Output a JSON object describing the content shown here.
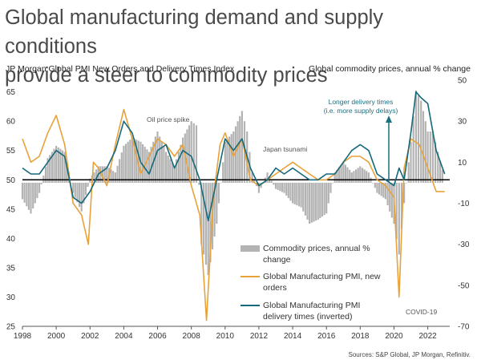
{
  "header": {
    "title_line1": "Global manufacturing demand and supply conditions",
    "title_line2": "provide a steer to commodity prices",
    "left_axis_label": "JP Morgan Global PMI New Orders and Delivery Times Index",
    "right_axis_label": "Global commodity prices, annual % change"
  },
  "footer": {
    "source": "Sources: S&P Global, JP Morgan, Refinitiv."
  },
  "chart_data": {
    "type": "line",
    "x_ticks": [
      "1998",
      "2000",
      "2002",
      "2004",
      "2006",
      "2008",
      "2010",
      "2012",
      "2014",
      "2016",
      "2018",
      "2020",
      "2022"
    ],
    "xlim": [
      1998,
      2023.3
    ],
    "left_axis": {
      "ticks": [
        25,
        30,
        35,
        40,
        45,
        50,
        55,
        60,
        65
      ],
      "ylim": [
        25,
        67
      ]
    },
    "right_axis": {
      "ticks": [
        -70,
        -50,
        -30,
        -10,
        10,
        30,
        50
      ],
      "ylim": [
        -70,
        50
      ]
    },
    "annotations": {
      "oil": "Oil price spike",
      "japan": "Japan tsunami",
      "covid": "COVID-19",
      "delivery_line1": "Longer delivery times",
      "delivery_line2": "(i.e. more supply delays)"
    },
    "legend": {
      "placement": "bottom-right",
      "commodity": [
        "Commodity prices, annual %",
        "change"
      ],
      "neworders": [
        "Global Manufacturing PMI, new",
        "orders"
      ],
      "delivery": [
        "Global Manufacturing PMI",
        "delivery times (inverted)"
      ]
    },
    "colors": {
      "bars": "#b3b3b3",
      "neworders": "#e8a23a",
      "delivery": "#15697a",
      "annotation": "#1b6f7e"
    },
    "series": [
      {
        "name": "Commodity prices, annual % change",
        "axis": "right",
        "style": "bars",
        "x": [
          1998,
          1998.5,
          1999,
          1999.5,
          2000,
          2000.5,
          2001,
          2001.5,
          2002,
          2002.5,
          2003,
          2003.5,
          2004,
          2004.5,
          2005,
          2005.5,
          2006,
          2006.5,
          2007,
          2007.5,
          2008,
          2008.3,
          2008.6,
          2009,
          2009.5,
          2010,
          2010.5,
          2011,
          2011.3,
          2011.6,
          2012,
          2012.5,
          2013,
          2013.5,
          2014,
          2014.5,
          2015,
          2015.5,
          2016,
          2016.5,
          2017,
          2017.5,
          2018,
          2018.5,
          2019,
          2019.5,
          2020,
          2020.3,
          2020.6,
          2021,
          2021.3,
          2021.6,
          2022,
          2022.3,
          2022.6,
          2023
        ],
        "values": [
          -8,
          -15,
          -5,
          12,
          18,
          15,
          -5,
          -14,
          2,
          8,
          8,
          5,
          18,
          22,
          20,
          15,
          25,
          15,
          8,
          22,
          30,
          28,
          -30,
          -45,
          -20,
          20,
          25,
          35,
          25,
          5,
          -5,
          5,
          -3,
          -5,
          -10,
          -12,
          -20,
          -18,
          -15,
          5,
          10,
          5,
          8,
          5,
          -5,
          -8,
          -20,
          -35,
          -10,
          20,
          45,
          40,
          25,
          25,
          15,
          2
        ]
      },
      {
        "name": "Global Manufacturing PMI, new orders",
        "axis": "left",
        "x": [
          1998,
          1998.5,
          1999,
          1999.5,
          2000,
          2000.5,
          2001,
          2001.5,
          2001.9,
          2002.2,
          2002.5,
          2003,
          2003.5,
          2004,
          2004.5,
          2005,
          2005.5,
          2006,
          2006.5,
          2007,
          2007.5,
          2008,
          2008.5,
          2008.9,
          2009.3,
          2009.7,
          2010,
          2010.5,
          2011,
          2011.5,
          2012,
          2012.5,
          2013,
          2013.5,
          2014,
          2014.5,
          2015,
          2015.5,
          2016,
          2016.5,
          2017,
          2017.5,
          2018,
          2018.5,
          2019,
          2019.5,
          2020,
          2020.3,
          2020.6,
          2021,
          2021.5,
          2022,
          2022.5,
          2023
        ],
        "values": [
          57,
          53,
          54,
          58,
          61,
          56,
          46,
          44,
          39,
          53,
          52,
          49,
          56,
          62,
          57,
          51,
          54,
          57,
          56,
          54,
          56,
          49,
          44,
          26,
          47,
          56,
          58,
          54,
          57,
          50,
          49,
          50,
          51,
          52,
          53,
          52,
          51,
          50,
          50,
          51,
          53,
          54,
          54,
          53,
          50,
          49,
          47,
          30,
          52,
          57,
          56,
          52,
          48,
          48
        ]
      },
      {
        "name": "Global Manufacturing PMI delivery times (inverted)",
        "axis": "left",
        "x": [
          1998,
          1998.5,
          1999,
          1999.5,
          2000,
          2000.5,
          2001,
          2001.5,
          2002,
          2002.5,
          2003,
          2003.5,
          2004,
          2004.5,
          2005,
          2005.5,
          2006,
          2006.5,
          2007,
          2007.5,
          2008,
          2008.5,
          2009,
          2009.5,
          2010,
          2010.5,
          2011,
          2011.5,
          2012,
          2012.5,
          2013,
          2013.5,
          2014,
          2014.5,
          2015,
          2015.5,
          2016,
          2016.5,
          2017,
          2017.5,
          2018,
          2018.5,
          2019,
          2019.5,
          2020,
          2020.3,
          2020.6,
          2021,
          2021.3,
          2021.6,
          2022,
          2022.5,
          2023
        ],
        "values": [
          52,
          51,
          51,
          53,
          55,
          54,
          47,
          46,
          48,
          51,
          52,
          55,
          60,
          58,
          53,
          51,
          55,
          56,
          52,
          55,
          54,
          50,
          43,
          50,
          57,
          55,
          57,
          52,
          49,
          50,
          52,
          51,
          52,
          51,
          50,
          50,
          51,
          51,
          53,
          55,
          56,
          55,
          51,
          50,
          49,
          52,
          50,
          58,
          65,
          64,
          63,
          55,
          51
        ]
      }
    ]
  }
}
